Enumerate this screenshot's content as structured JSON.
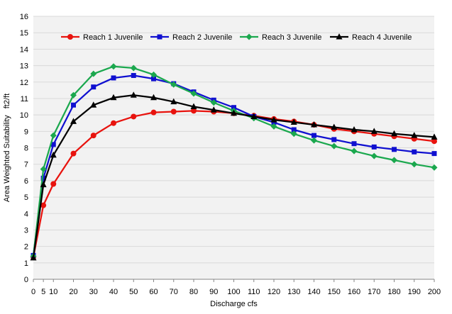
{
  "chart_data": {
    "type": "line",
    "title": "",
    "xlabel": "Discharge cfs",
    "ylabel": "Area Weighted Suitability   ft2/ft",
    "x": [
      0,
      5,
      10,
      20,
      30,
      40,
      50,
      60,
      70,
      80,
      90,
      100,
      110,
      120,
      130,
      140,
      150,
      160,
      170,
      180,
      190,
      200
    ],
    "xlim": [
      0,
      200
    ],
    "ylim": [
      0,
      16
    ],
    "xticks": [
      "0",
      "5",
      "10",
      "20",
      "30",
      "40",
      "50",
      "60",
      "70",
      "80",
      "90",
      "100",
      "110",
      "120",
      "130",
      "140",
      "150",
      "160",
      "170",
      "180",
      "190",
      "200"
    ],
    "yticks": [
      "0",
      "1",
      "2",
      "3",
      "4",
      "5",
      "6",
      "7",
      "8",
      "9",
      "10",
      "11",
      "12",
      "13",
      "14",
      "15",
      "16"
    ],
    "grid": "horizontal",
    "legend_position": "top",
    "plot_background": "#f2f2f2",
    "series": [
      {
        "name": "Reach 1 Juvenile",
        "color": "#e8130e",
        "marker": "circle",
        "values": [
          1.35,
          4.5,
          5.8,
          7.65,
          8.75,
          9.5,
          9.9,
          10.15,
          10.2,
          10.25,
          10.2,
          10.1,
          9.95,
          9.75,
          9.6,
          9.4,
          9.15,
          9.0,
          8.85,
          8.7,
          8.55,
          8.4
        ]
      },
      {
        "name": "Reach 2 Juvenile",
        "color": "#1010d0",
        "marker": "square",
        "values": [
          1.45,
          6.15,
          8.2,
          10.6,
          11.7,
          12.25,
          12.4,
          12.2,
          11.9,
          11.4,
          10.9,
          10.45,
          9.9,
          9.55,
          9.1,
          8.75,
          8.5,
          8.25,
          8.05,
          7.9,
          7.75,
          7.65
        ]
      },
      {
        "name": "Reach 3 Juvenile",
        "color": "#1ba84e",
        "marker": "diamond",
        "values": [
          1.4,
          6.7,
          8.75,
          11.2,
          12.5,
          12.95,
          12.85,
          12.45,
          11.85,
          11.3,
          10.75,
          10.25,
          9.8,
          9.3,
          8.85,
          8.45,
          8.1,
          7.8,
          7.5,
          7.25,
          7.0,
          6.8
        ]
      },
      {
        "name": "Reach 4 Juvenile",
        "color": "#000000",
        "marker": "triangle",
        "values": [
          1.3,
          5.75,
          7.55,
          9.6,
          10.6,
          11.05,
          11.2,
          11.05,
          10.8,
          10.5,
          10.3,
          10.1,
          9.9,
          9.7,
          9.55,
          9.4,
          9.25,
          9.1,
          9.0,
          8.85,
          8.75,
          8.65
        ]
      }
    ]
  }
}
